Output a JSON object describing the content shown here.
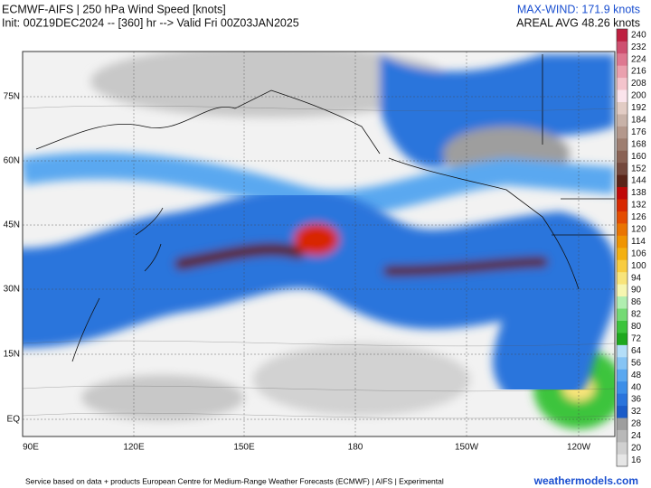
{
  "header": {
    "title": "ECMWF-AIFS | 250 hPa Wind Speed [knots]",
    "init": "Init: 00Z19DEC2024 -- [360] hr --> Valid Fri 00Z03JAN2025",
    "max_wind": "MAX-WIND: 171.9 knots",
    "areal_avg": "AREAL AVG 48.26 knots"
  },
  "map": {
    "lat_labels": [
      "75N",
      "60N",
      "45N",
      "30N",
      "15N",
      "EQ"
    ],
    "lon_labels": [
      "90E",
      "120E",
      "150E",
      "180",
      "150W",
      "120W"
    ]
  },
  "colorbar": {
    "levels": [
      16,
      20,
      24,
      28,
      32,
      36,
      40,
      48,
      56,
      64,
      72,
      80,
      82,
      86,
      90,
      94,
      100,
      106,
      114,
      120,
      126,
      132,
      138,
      144,
      152,
      160,
      168,
      176,
      184,
      192,
      200,
      208,
      216,
      224,
      232,
      240
    ],
    "colors": [
      "#e6e6e6",
      "#d0d0d0",
      "#b8b8b8",
      "#9e9e9e",
      "#1c5cc8",
      "#2a74dc",
      "#3c8ee8",
      "#5aa8f0",
      "#86c4f4",
      "#b4def8",
      "#1ea81e",
      "#3cc43c",
      "#74da74",
      "#b0eeb0",
      "#f6f6b0",
      "#f8e47a",
      "#f8cc40",
      "#f4b010",
      "#f09400",
      "#ea7400",
      "#e44c00",
      "#d82800",
      "#c00808",
      "#5a2418",
      "#74483c",
      "#8a6254",
      "#9e7e70",
      "#b4988c",
      "#c8b2a8",
      "#e2ccc4",
      "#fbe4ec",
      "#f4c4cc",
      "#eaa0ae",
      "#de7890",
      "#ce5070",
      "#be2040"
    ]
  },
  "footer": {
    "credit": "Service based on data + products European Centre for Medium-Range Weather Forecasts (ECMWF) | AIFS | Experimental",
    "site": "weathermodels.com"
  }
}
